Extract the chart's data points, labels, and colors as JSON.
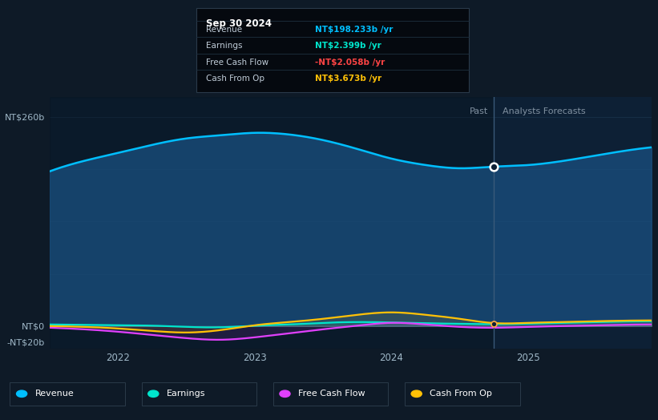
{
  "bg_color": "#0e1a27",
  "plot_bg_color": "#0d2035",
  "grid_color": "#1e3a52",
  "xlim": [
    2021.5,
    2025.9
  ],
  "ylim": [
    -28,
    285
  ],
  "divider_x": 2024.75,
  "past_label": "Past",
  "forecast_label": "Analysts Forecasts",
  "xtick_labels": [
    "2022",
    "2023",
    "2024",
    "2025"
  ],
  "xtick_positions": [
    2022,
    2023,
    2024,
    2025
  ],
  "revenue_color": "#00bfff",
  "revenue_fill_color": "#1a5080",
  "earnings_color": "#00e5cc",
  "fcf_color": "#e040fb",
  "cashop_color": "#ffc107",
  "fcf_neg_color": "#ff4444",
  "tooltip_bg": "#05090f",
  "tooltip_border": "#2a3a4a",
  "revenue_x": [
    2021.5,
    2021.75,
    2022.0,
    2022.25,
    2022.5,
    2022.75,
    2023.0,
    2023.25,
    2023.5,
    2023.75,
    2024.0,
    2024.25,
    2024.5,
    2024.75,
    2025.0,
    2025.25,
    2025.5,
    2025.9
  ],
  "revenue_y": [
    192,
    205,
    215,
    225,
    233,
    237,
    240,
    238,
    231,
    220,
    208,
    200,
    196,
    198,
    200,
    205,
    212,
    222
  ],
  "earnings_x": [
    2021.5,
    2021.75,
    2022.0,
    2022.25,
    2022.5,
    2022.75,
    2023.0,
    2023.25,
    2023.5,
    2023.75,
    2024.0,
    2024.25,
    2024.5,
    2024.75,
    2025.0,
    2025.25,
    2025.5,
    2025.9
  ],
  "earnings_y": [
    2,
    1.5,
    1,
    0.5,
    -1,
    -1.5,
    0.5,
    2,
    4,
    5,
    4.5,
    3.5,
    2.8,
    2.4,
    3,
    4,
    5,
    6
  ],
  "fcf_x": [
    2021.5,
    2021.75,
    2022.0,
    2022.25,
    2022.5,
    2022.75,
    2023.0,
    2023.25,
    2023.5,
    2023.75,
    2024.0,
    2024.25,
    2024.5,
    2024.75,
    2025.0,
    2025.25,
    2025.5,
    2025.9
  ],
  "fcf_y": [
    -2,
    -4,
    -7,
    -11,
    -15,
    -17,
    -14,
    -9,
    -4,
    0.5,
    4,
    2,
    -1,
    -2.1,
    -1,
    0,
    1,
    2
  ],
  "cashop_x": [
    2021.5,
    2021.75,
    2022.0,
    2022.25,
    2022.5,
    2022.75,
    2023.0,
    2023.25,
    2023.5,
    2023.75,
    2024.0,
    2024.25,
    2024.5,
    2024.75,
    2025.0,
    2025.25,
    2025.5,
    2025.9
  ],
  "cashop_y": [
    0,
    -1,
    -3,
    -6,
    -8,
    -5,
    1,
    5,
    9,
    14,
    17,
    14,
    9,
    3.7,
    4,
    5,
    6,
    7
  ],
  "tooltip_title": "Sep 30 2024",
  "tooltip_rows": [
    [
      "Revenue",
      "NT$198.233b",
      "#00bfff"
    ],
    [
      "Earnings",
      "NT$2.399b",
      "#00e5cc"
    ],
    [
      "Free Cash Flow",
      "-NT$2.058b",
      "#ff4444"
    ],
    [
      "Cash From Op",
      "NT$3.673b",
      "#ffc107"
    ]
  ],
  "legend_items": [
    [
      "Revenue",
      "#00bfff"
    ],
    [
      "Earnings",
      "#00e5cc"
    ],
    [
      "Free Cash Flow",
      "#e040fb"
    ],
    [
      "Cash From Op",
      "#ffc107"
    ]
  ]
}
